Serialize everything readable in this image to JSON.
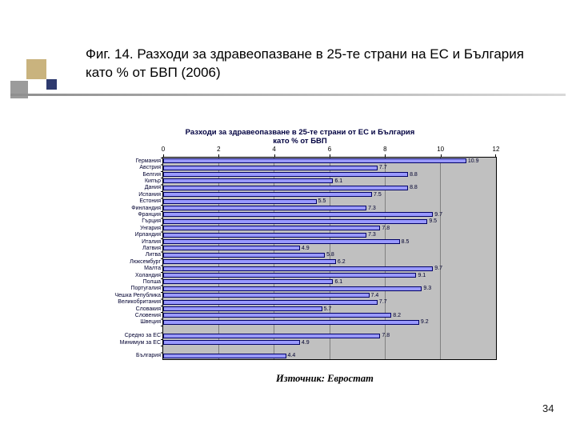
{
  "slide": {
    "title": "Фиг. 14. Разходи за здравеопазване в 25-те страни на ЕС и България като % от БВП (2006)",
    "source_note": "Източник: Евростат",
    "page_number": "34"
  },
  "chart_data": {
    "type": "bar",
    "orientation": "horizontal",
    "title": "Разходи за здравеопазване в 25-те страни от ЕС и България като % от БВП",
    "title_line1": "Разходи за здравеопазване в 25-те страни от ЕС и България",
    "title_line2": "като % от БВП",
    "xlim": [
      0,
      12
    ],
    "x_ticks": [
      0,
      2,
      4,
      6,
      8,
      10,
      12
    ],
    "grid": true,
    "legend": false,
    "categories": [
      "Германия",
      "Австрия",
      "Белгия",
      "Кипър",
      "Дания",
      "Испания",
      "Естония",
      "Финландия",
      "Франция",
      "Гърция",
      "Унгария",
      "Ирландия",
      "Италия",
      "Латвия",
      "Литва",
      "Люксембург",
      "Малта",
      "Холандия",
      "Полша",
      "Португалия",
      "Чешка Република",
      "Великобритания",
      "Словакия",
      "Словения",
      "Швеция",
      "",
      "Средно за ЕС",
      "Минимум за ЕС",
      "",
      "България"
    ],
    "values": [
      10.9,
      7.7,
      8.8,
      6.1,
      8.8,
      7.5,
      5.5,
      7.3,
      9.7,
      9.5,
      7.8,
      7.3,
      8.5,
      4.9,
      5.8,
      6.2,
      9.7,
      9.1,
      6.1,
      9.3,
      7.4,
      7.7,
      5.7,
      8.2,
      9.2,
      null,
      7.8,
      4.9,
      null,
      4.4
    ],
    "bar_color": "#9999ff",
    "bar_border_color": "#000066",
    "plot_bg_color": "#c0c0c0",
    "gridline_color": "#808080"
  }
}
